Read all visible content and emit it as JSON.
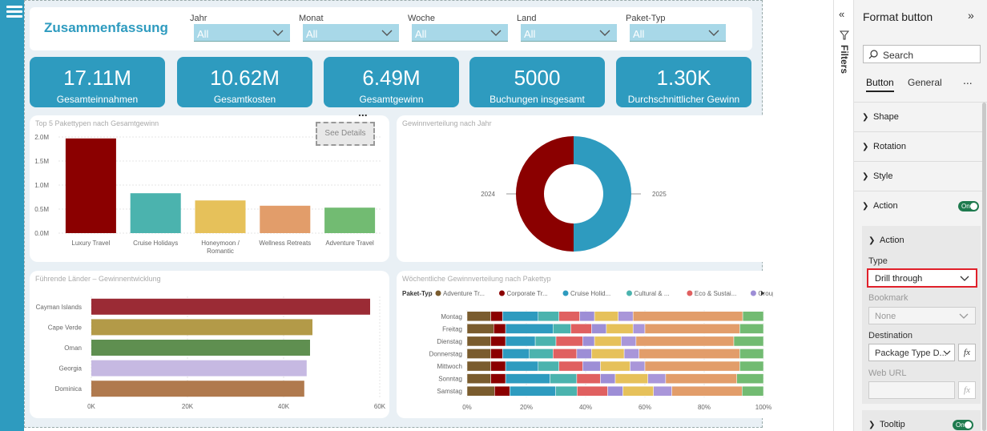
{
  "header": {
    "title": "Zusammenfassung"
  },
  "slicers": [
    {
      "label": "Jahr",
      "value": "All"
    },
    {
      "label": "Monat",
      "value": "All"
    },
    {
      "label": "Woche",
      "value": "All"
    },
    {
      "label": "Land",
      "value": "All"
    },
    {
      "label": "Paket-Typ",
      "value": "All"
    }
  ],
  "kpis": [
    {
      "value": "17.11M",
      "label": "Gesamteinnahmen"
    },
    {
      "value": "10.62M",
      "label": "Gesamtkosten"
    },
    {
      "value": "6.49M",
      "label": "Gesamtgewinn"
    },
    {
      "value": "5000",
      "label": "Buchungen insgesamt"
    },
    {
      "value": "1.30K",
      "label": "Durchschnittlicher Gewinn"
    }
  ],
  "button": {
    "label": "See Details",
    "more": "..."
  },
  "bar_chart": {
    "title": "Top 5 Pakettypen nach Gesamtgewinn",
    "type": "bar",
    "categories": [
      "Luxury Travel",
      "Cruise Holidays",
      "Honeymoon / Romantic",
      "Wellness Retreats",
      "Adventure Travel"
    ],
    "category_lines": [
      [
        "Luxury Travel"
      ],
      [
        "Cruise Holidays"
      ],
      [
        "Honeymoon /",
        "Romantic"
      ],
      [
        "Wellness Retreats"
      ],
      [
        "Adventure Travel"
      ]
    ],
    "values": [
      1.97,
      0.83,
      0.68,
      0.57,
      0.53
    ],
    "colors": [
      "#8b0000",
      "#4bb3ae",
      "#e6c15a",
      "#e29d6a",
      "#72bb72"
    ],
    "ylim": [
      0,
      2
    ],
    "yticks": [
      {
        "v": 0,
        "l": "0.0M"
      },
      {
        "v": 0.5,
        "l": "0.5M"
      },
      {
        "v": 1,
        "l": "1.0M"
      },
      {
        "v": 1.5,
        "l": "1.5M"
      },
      {
        "v": 2,
        "l": "2.0M"
      }
    ]
  },
  "donut": {
    "title": "Gewinnverteilung nach Jahr",
    "type": "pie",
    "slices": [
      {
        "label": "2024",
        "value": 50,
        "color": "#8b0000"
      },
      {
        "label": "2025",
        "value": 50,
        "color": "#2e9bbf"
      }
    ]
  },
  "hbar_chart": {
    "title": "Führende Länder – Gewinnentwicklung",
    "type": "bar",
    "categories": [
      "Cayman Islands",
      "Cape Verde",
      "Oman",
      "Georgia",
      "Dominica"
    ],
    "values": [
      58000,
      46000,
      45500,
      44800,
      44300
    ],
    "colors": [
      "#9b2b35",
      "#b39a48",
      "#5f8f50",
      "#c6b9e2",
      "#b07a4e"
    ],
    "xlim": [
      0,
      60000
    ],
    "xticks": [
      {
        "v": 0,
        "l": "0K"
      },
      {
        "v": 20000,
        "l": "20K"
      },
      {
        "v": 40000,
        "l": "40K"
      },
      {
        "v": 60000,
        "l": "60K"
      }
    ]
  },
  "stacked": {
    "title": "Wöchentliche Gewinnverteilung nach Pakettyp",
    "type": "bar",
    "legend_title": "Paket-Typ",
    "legend": [
      {
        "name": "Adventure Tr...",
        "color": "#7a5c2e"
      },
      {
        "name": "Corporate Tr...",
        "color": "#8b0000"
      },
      {
        "name": "Cruise Holid...",
        "color": "#2e9bbf"
      },
      {
        "name": "Cultural & ...",
        "color": "#4bb3ae"
      },
      {
        "name": "Eco & Sustai...",
        "color": "#e06060"
      },
      {
        "name": "Group Tours",
        "color": "#9d8ed6"
      }
    ],
    "seg_colors": [
      "#7a5c2e",
      "#8b0000",
      "#2e9bbf",
      "#4bb3ae",
      "#e06060",
      "#9d8ed6",
      "#e6c15a",
      "#a996d9",
      "#e29d6a",
      "#72bb72"
    ],
    "categories": [
      "Montag",
      "Freitag",
      "Dienstag",
      "Donnerstag",
      "Mittwoch",
      "Sonntag",
      "Samstag"
    ],
    "series": [
      [
        8,
        4,
        12,
        7,
        7,
        5,
        8,
        5,
        37,
        7
      ],
      [
        9,
        4,
        16,
        6,
        7,
        5,
        9,
        4,
        32,
        8
      ],
      [
        8,
        5,
        10,
        7,
        9,
        4,
        9,
        5,
        33,
        10
      ],
      [
        8,
        4,
        9,
        8,
        8,
        5,
        11,
        5,
        34,
        8
      ],
      [
        8,
        5,
        11,
        7,
        8,
        6,
        10,
        5,
        32,
        8
      ],
      [
        8,
        5,
        15,
        9,
        8,
        5,
        11,
        6,
        24,
        9
      ],
      [
        9,
        5,
        15,
        7,
        10,
        5,
        10,
        6,
        23,
        7
      ]
    ],
    "xlim": [
      0,
      100
    ],
    "xticks": [
      {
        "v": 0,
        "l": "0%"
      },
      {
        "v": 20,
        "l": "20%"
      },
      {
        "v": 40,
        "l": "40%"
      },
      {
        "v": 60,
        "l": "60%"
      },
      {
        "v": 80,
        "l": "80%"
      },
      {
        "v": 100,
        "l": "100%"
      }
    ]
  },
  "filters": {
    "label": "Filters"
  },
  "format": {
    "title": "Format button",
    "search_placeholder": "Search",
    "tabs": [
      "Button",
      "General"
    ],
    "more": "...",
    "sections": [
      "Shape",
      "Rotation",
      "Style",
      "Action"
    ],
    "action_toggle": "On",
    "action_sub": "Action",
    "type_label": "Type",
    "type_value": "Drill through",
    "bookmark_label": "Bookmark",
    "bookmark_value": "None",
    "destination_label": "Destination",
    "destination_value": "Package Type D...",
    "fx": "fx",
    "weburl_label": "Web URL",
    "tooltip_label": "Tooltip",
    "tooltip_toggle": "On"
  }
}
